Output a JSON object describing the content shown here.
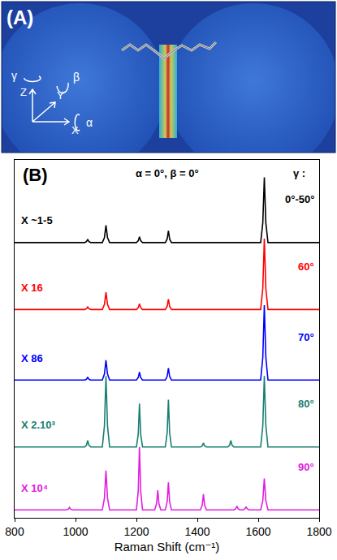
{
  "diagram": {
    "panel_label": "(A)",
    "axes": [
      "X",
      "Y",
      "Z"
    ],
    "rotations": [
      "α",
      "β",
      "γ"
    ]
  },
  "chart_data": {
    "type": "line",
    "panel_label": "(B)",
    "subtitle": "α = 0°, β = 0°",
    "gamma_title": "γ :",
    "x_label": "Raman Shift (cm⁻¹)",
    "xlim": [
      800,
      1800
    ],
    "xticks": [
      800,
      1000,
      1200,
      1400,
      1600,
      1800
    ],
    "ylim": [
      0,
      100
    ],
    "tick_labels": "x",
    "grid": false,
    "factor_labels": [
      "X ~1-5",
      "X 16",
      "X 86",
      "X 2.10³",
      "X 10⁴"
    ],
    "gamma_labels": [
      "0°-50°",
      "60°",
      "70°",
      "80°",
      "90°"
    ],
    "series": [
      {
        "color": "#000000",
        "x": [
          800,
          1030,
          1036,
          1040,
          1044,
          1050,
          1088,
          1095,
          1100,
          1105,
          1112,
          1200,
          1206,
          1210,
          1214,
          1220,
          1295,
          1301,
          1305,
          1309,
          1315,
          1608,
          1615,
          1620,
          1625,
          1632,
          1800
        ],
        "values": [
          76.9,
          76.9,
          77.2,
          77.8,
          77.2,
          76.9,
          76.9,
          78.3,
          81.7,
          78.3,
          76.9,
          76.9,
          77.4,
          78.5,
          77.4,
          76.9,
          76.9,
          77.9,
          80.2,
          77.9,
          76.9,
          76.9,
          82.4,
          95.1,
          82.4,
          76.9,
          76.9
        ]
      },
      {
        "color": "#ff0000",
        "x": [
          800,
          1030,
          1036,
          1040,
          1044,
          1050,
          1088,
          1095,
          1100,
          1105,
          1112,
          1200,
          1206,
          1210,
          1214,
          1220,
          1295,
          1301,
          1305,
          1309,
          1315,
          1608,
          1615,
          1620,
          1625,
          1632,
          1800
        ],
        "values": [
          58.2,
          58.2,
          58.4,
          58.9,
          58.4,
          58.2,
          58.2,
          59.6,
          63.0,
          59.6,
          58.2,
          58.2,
          58.7,
          59.8,
          58.7,
          58.2,
          58.2,
          59.1,
          61.1,
          59.1,
          58.2,
          58.2,
          64.1,
          78.0,
          64.1,
          58.2,
          58.2
        ]
      },
      {
        "color": "#0000ff",
        "x": [
          800,
          1030,
          1036,
          1040,
          1044,
          1050,
          1088,
          1095,
          1100,
          1105,
          1112,
          1200,
          1206,
          1210,
          1214,
          1220,
          1295,
          1301,
          1305,
          1309,
          1315,
          1608,
          1615,
          1620,
          1625,
          1632,
          1800
        ],
        "values": [
          38.5,
          38.5,
          38.7,
          39.3,
          38.7,
          38.5,
          38.5,
          40.2,
          44.0,
          40.2,
          38.5,
          38.5,
          39.2,
          40.7,
          39.2,
          38.5,
          38.5,
          39.5,
          41.8,
          39.5,
          38.5,
          38.5,
          44.8,
          59.4,
          44.8,
          38.5,
          38.5
        ]
      },
      {
        "color": "#1a7f72",
        "x": [
          800,
          1030,
          1036,
          1040,
          1044,
          1050,
          1088,
          1095,
          1100,
          1105,
          1112,
          1200,
          1206,
          1210,
          1214,
          1220,
          1295,
          1301,
          1305,
          1309,
          1315,
          1410,
          1416,
          1420,
          1424,
          1430,
          1500,
          1506,
          1510,
          1514,
          1520,
          1608,
          1615,
          1620,
          1625,
          1632,
          1800
        ],
        "values": [
          19.8,
          19.8,
          20.3,
          21.6,
          20.3,
          19.8,
          19.8,
          25.7,
          39.6,
          25.7,
          19.8,
          19.8,
          23.4,
          31.9,
          23.4,
          19.8,
          19.8,
          23.8,
          33.0,
          23.8,
          19.8,
          19.8,
          20.1,
          20.9,
          20.1,
          19.8,
          19.8,
          20.3,
          21.6,
          20.3,
          19.8,
          19.8,
          25.7,
          39.6,
          25.7,
          19.8,
          19.8
        ]
      },
      {
        "color": "#e020e0",
        "x": [
          800,
          970,
          976,
          980,
          984,
          990,
          1088,
          1095,
          1100,
          1105,
          1112,
          1200,
          1206,
          1210,
          1214,
          1220,
          1260,
          1266,
          1270,
          1274,
          1280,
          1295,
          1301,
          1305,
          1309,
          1315,
          1410,
          1416,
          1420,
          1424,
          1430,
          1520,
          1526,
          1530,
          1534,
          1540,
          1550,
          1556,
          1560,
          1564,
          1570,
          1608,
          1615,
          1620,
          1625,
          1632,
          1800
        ],
        "values": [
          2.2,
          2.2,
          2.4,
          2.9,
          2.4,
          2.2,
          2.2,
          5.5,
          13.2,
          5.5,
          2.2,
          2.2,
          7.5,
          19.8,
          7.5,
          2.2,
          2.2,
          3.9,
          7.7,
          3.9,
          2.2,
          2.2,
          4.5,
          9.9,
          4.5,
          2.2,
          2.2,
          3.5,
          6.6,
          3.5,
          2.2,
          2.2,
          2.5,
          3.3,
          2.5,
          2.2,
          2.2,
          2.5,
          3.1,
          2.5,
          2.2,
          2.2,
          4.8,
          11.0,
          4.8,
          2.2,
          2.2
        ]
      }
    ]
  }
}
